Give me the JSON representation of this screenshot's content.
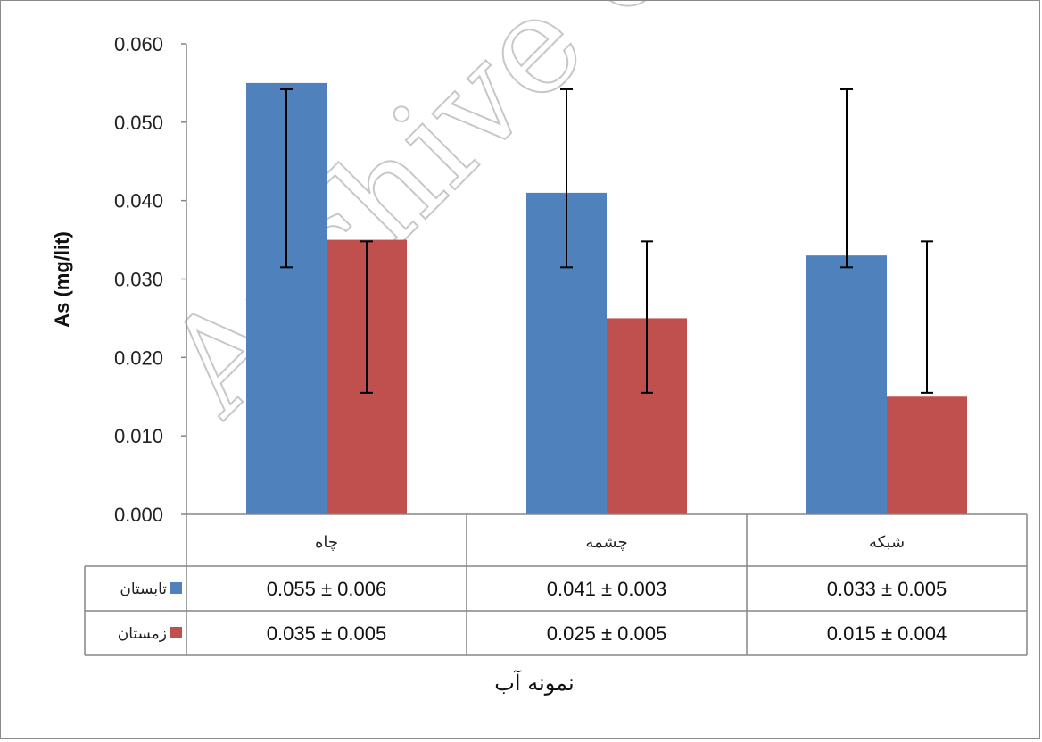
{
  "chart_data": {
    "type": "bar",
    "categories": [
      "چاه",
      "چشمه",
      "شبکه"
    ],
    "series": [
      {
        "name": "تابستان",
        "color": "#4f81bd",
        "values": [
          0.055,
          0.041,
          0.033
        ],
        "err_low": [
          0.0315,
          0.0315,
          0.0315
        ],
        "err_high": [
          0.0542,
          0.0542,
          0.0542
        ]
      },
      {
        "name": "زمستان",
        "color": "#c0504d",
        "values": [
          0.035,
          0.025,
          0.015
        ],
        "err_low": [
          0.0155,
          0.0155,
          0.0155
        ],
        "err_high": [
          0.0348,
          0.0348,
          0.0348
        ]
      }
    ],
    "table": [
      [
        "0.055 ± 0.006",
        "0.041 ± 0.003",
        "0.033 ± 0.005"
      ],
      [
        "0.035 ± 0.005",
        "0.025 ± 0.005",
        "0.015 ± 0.004"
      ]
    ],
    "ylim": [
      0,
      0.06
    ],
    "yticks": [
      "0.000",
      "0.010",
      "0.020",
      "0.030",
      "0.040",
      "0.050",
      "0.060"
    ],
    "ylabel": "As (mg/lit)",
    "xlabel": "نمونه آب",
    "grid": false,
    "legend": "data-table"
  },
  "watermark": "Archive of SID"
}
